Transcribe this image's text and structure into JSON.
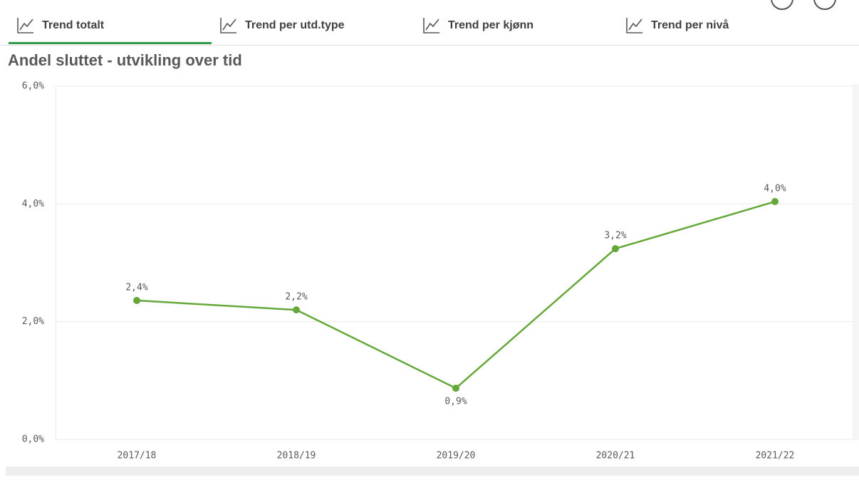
{
  "tabs": [
    "Trend totalt",
    "Trend per utd.type",
    "Trend per kjønn",
    "Trend per nivå"
  ],
  "chart_data": {
    "type": "line",
    "title": "Andel sluttet - utvikling over tid",
    "categories": [
      "2017/18",
      "2018/19",
      "2019/20",
      "2020/21",
      "2021/22"
    ],
    "values": [
      2.36,
      2.2,
      0.87,
      3.24,
      4.04
    ],
    "value_labels": [
      "2,4%",
      "2,2%",
      "0,9%",
      "3,2%",
      "4,0%"
    ],
    "color": "#65a83a",
    "ylim": [
      0,
      6
    ],
    "yticks": [
      {
        "value": 0,
        "label": "0,0%"
      },
      {
        "value": 2,
        "label": "2,0%"
      },
      {
        "value": 4,
        "label": "4,0%"
      },
      {
        "value": 6,
        "label": "6,0%"
      }
    ],
    "grid": true
  }
}
